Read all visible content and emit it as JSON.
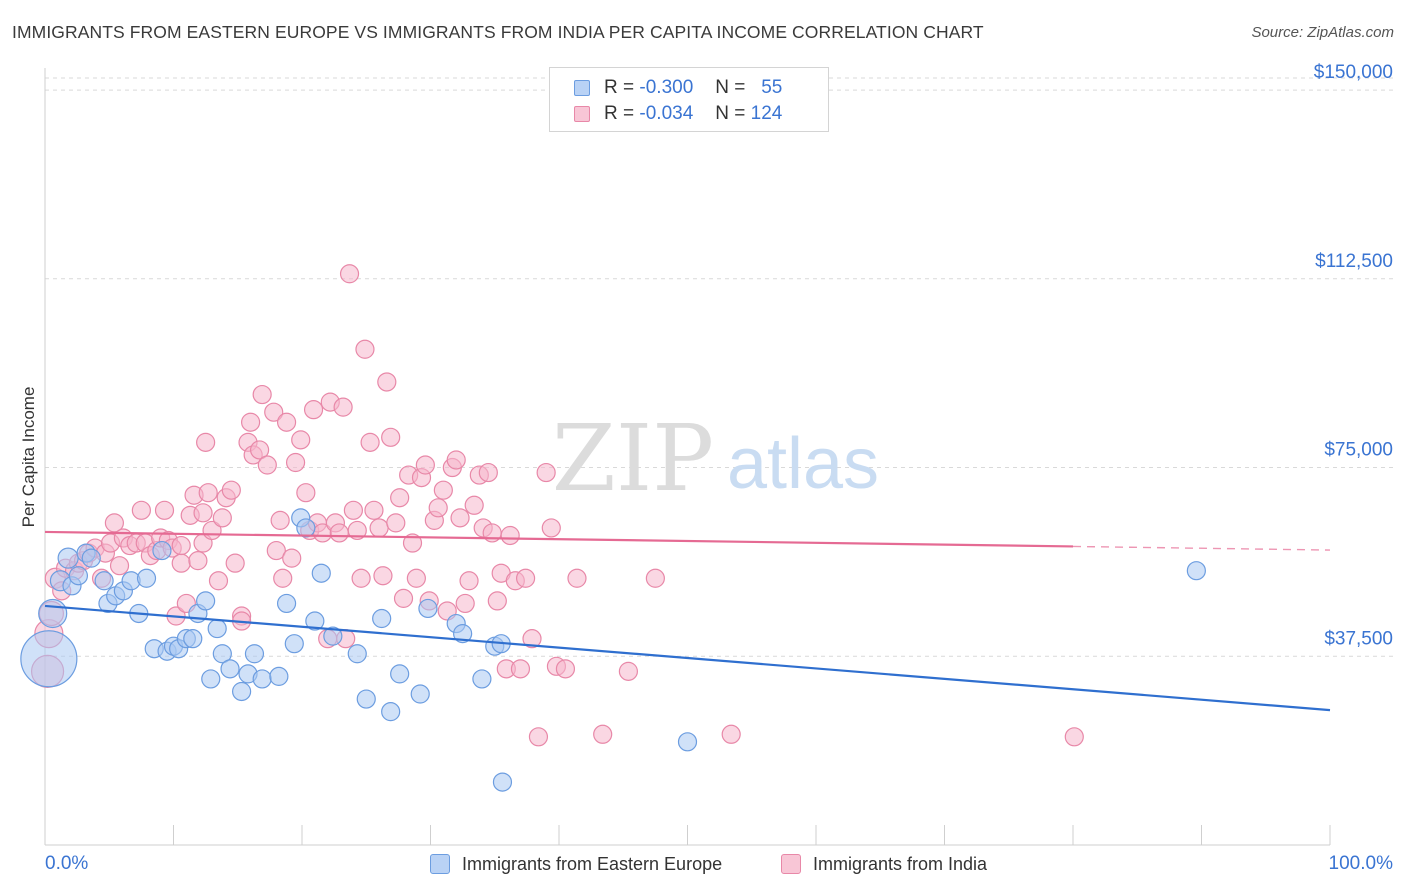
{
  "title": "IMMIGRANTS FROM EASTERN EUROPE VS IMMIGRANTS FROM INDIA PER CAPITA INCOME CORRELATION CHART",
  "source": "Source: ZipAtlas.com",
  "watermark": {
    "zip": "ZIP",
    "atlas": "atlas"
  },
  "legend_top": [
    {
      "r_label": "R =",
      "r_value": "-0.300",
      "n_label": "N =",
      "n_value": "55"
    },
    {
      "r_label": "R =",
      "r_value": "-0.034",
      "n_label": "N =",
      "n_value": "124"
    }
  ],
  "bottom_legend": [
    {
      "label": "Immigrants from Eastern Europe"
    },
    {
      "label": "Immigrants from India"
    }
  ],
  "colors": {
    "blue_fill": "#a9c8f2",
    "blue_stroke": "#6c9de0",
    "blue_line": "#2f6fcf",
    "pink_fill": "#f6b7cc",
    "pink_stroke": "#e888a8",
    "pink_line": "#e56a93",
    "axis_text": "#3a74d2",
    "grid": "#d9d9d9"
  },
  "chart_data": {
    "type": "scatter",
    "title": "IMMIGRANTS FROM EASTERN EUROPE VS IMMIGRANTS FROM INDIA PER CAPITA INCOME CORRELATION CHART",
    "xlabel": "",
    "ylabel": "Per Capita Income",
    "xlim": [
      0,
      100
    ],
    "ylim": [
      0,
      152000
    ],
    "x_tick_labels": [
      "0.0%",
      "100.0%"
    ],
    "y_ticks": [
      37500,
      75000,
      112500,
      150000
    ],
    "y_tick_labels": [
      "$37,500",
      "$75,000",
      "$112,500",
      "$150,000"
    ],
    "grid": true,
    "legend_position": "top-center",
    "series": [
      {
        "name": "Immigrants from Eastern Europe",
        "color": "blue",
        "r": -0.3,
        "n": 55,
        "trend": {
          "x": [
            0,
            100
          ],
          "y": [
            47500,
            26800
          ],
          "dashed_from": null
        },
        "points": [
          [
            0.3,
            37000,
            28
          ],
          [
            0.6,
            46000,
            14
          ],
          [
            1.2,
            52500,
            10
          ],
          [
            1.8,
            57000,
            10
          ],
          [
            2.1,
            51500,
            9
          ],
          [
            2.6,
            53500,
            9
          ],
          [
            3.2,
            58000,
            9
          ],
          [
            3.6,
            57000,
            9
          ],
          [
            4.6,
            52500,
            9
          ],
          [
            4.9,
            48000,
            9
          ],
          [
            5.5,
            49500,
            9
          ],
          [
            6.1,
            50500,
            9
          ],
          [
            6.7,
            52500,
            9
          ],
          [
            7.3,
            46000,
            9
          ],
          [
            7.9,
            53000,
            9
          ],
          [
            8.5,
            39000,
            9
          ],
          [
            9.1,
            58500,
            9
          ],
          [
            9.5,
            38500,
            9
          ],
          [
            10.0,
            39500,
            9
          ],
          [
            10.4,
            39000,
            9
          ],
          [
            11.0,
            41000,
            9
          ],
          [
            11.5,
            41000,
            9
          ],
          [
            11.9,
            46000,
            9
          ],
          [
            12.5,
            48500,
            9
          ],
          [
            12.9,
            33000,
            9
          ],
          [
            13.4,
            43000,
            9
          ],
          [
            13.8,
            38000,
            9
          ],
          [
            14.4,
            35000,
            9
          ],
          [
            15.3,
            30500,
            9
          ],
          [
            15.8,
            34000,
            9
          ],
          [
            16.3,
            38000,
            9
          ],
          [
            16.9,
            33000,
            9
          ],
          [
            18.2,
            33500,
            9
          ],
          [
            18.8,
            48000,
            9
          ],
          [
            19.4,
            40000,
            9
          ],
          [
            19.9,
            65000,
            9
          ],
          [
            20.3,
            63000,
            9
          ],
          [
            21.0,
            44500,
            9
          ],
          [
            21.5,
            54000,
            9
          ],
          [
            22.4,
            41500,
            9
          ],
          [
            24.3,
            38000,
            9
          ],
          [
            25.0,
            29000,
            9
          ],
          [
            26.2,
            45000,
            9
          ],
          [
            26.9,
            26500,
            9
          ],
          [
            27.6,
            34000,
            9
          ],
          [
            29.2,
            30000,
            9
          ],
          [
            29.8,
            47000,
            9
          ],
          [
            32.0,
            44000,
            9
          ],
          [
            32.5,
            42000,
            9
          ],
          [
            34.0,
            33000,
            9
          ],
          [
            35.0,
            39500,
            9
          ],
          [
            35.5,
            40000,
            9
          ],
          [
            35.6,
            12500,
            9
          ],
          [
            50.0,
            20500,
            9
          ],
          [
            89.6,
            54500,
            9
          ]
        ]
      },
      {
        "name": "Immigrants from India",
        "color": "pink",
        "r": -0.034,
        "n": 124,
        "trend": {
          "x": [
            0,
            100
          ],
          "y": [
            62200,
            58600
          ],
          "dashed_from": 80
        },
        "points": [
          [
            0.2,
            34500,
            16
          ],
          [
            0.3,
            42000,
            14
          ],
          [
            0.5,
            46000,
            12
          ],
          [
            0.8,
            53000,
            10
          ],
          [
            1.3,
            50500,
            9
          ],
          [
            1.6,
            55000,
            9
          ],
          [
            2.3,
            54500,
            9
          ],
          [
            2.6,
            56000,
            9
          ],
          [
            3.0,
            56500,
            9
          ],
          [
            3.4,
            58000,
            9
          ],
          [
            3.9,
            59000,
            9
          ],
          [
            4.4,
            53000,
            9
          ],
          [
            4.7,
            58000,
            9
          ],
          [
            5.1,
            60000,
            9
          ],
          [
            5.4,
            64000,
            9
          ],
          [
            5.8,
            55500,
            9
          ],
          [
            6.1,
            61000,
            9
          ],
          [
            6.6,
            59500,
            9
          ],
          [
            7.1,
            60000,
            9
          ],
          [
            7.5,
            66500,
            9
          ],
          [
            7.8,
            60000,
            9
          ],
          [
            8.2,
            57500,
            9
          ],
          [
            8.7,
            58500,
            9
          ],
          [
            9.0,
            61000,
            9
          ],
          [
            9.3,
            66500,
            9
          ],
          [
            9.6,
            60500,
            9
          ],
          [
            9.9,
            59000,
            9
          ],
          [
            10.2,
            45500,
            9
          ],
          [
            10.6,
            56000,
            9
          ],
          [
            10.6,
            59500,
            9
          ],
          [
            11.0,
            48000,
            9
          ],
          [
            11.3,
            65500,
            9
          ],
          [
            11.6,
            69500,
            9
          ],
          [
            11.9,
            56500,
            9
          ],
          [
            12.3,
            66000,
            9
          ],
          [
            12.3,
            60000,
            9
          ],
          [
            12.5,
            80000,
            9
          ],
          [
            12.7,
            70000,
            9
          ],
          [
            13.0,
            62500,
            9
          ],
          [
            13.5,
            52500,
            9
          ],
          [
            13.8,
            65000,
            9
          ],
          [
            14.1,
            69000,
            9
          ],
          [
            14.5,
            70500,
            9
          ],
          [
            14.8,
            56000,
            9
          ],
          [
            15.3,
            45500,
            9
          ],
          [
            15.3,
            44500,
            9
          ],
          [
            15.8,
            80000,
            9
          ],
          [
            16.0,
            84000,
            9
          ],
          [
            16.2,
            77500,
            9
          ],
          [
            16.7,
            78500,
            9
          ],
          [
            16.9,
            89500,
            9
          ],
          [
            17.3,
            75500,
            9
          ],
          [
            17.8,
            86000,
            9
          ],
          [
            18.0,
            58500,
            9
          ],
          [
            18.3,
            64500,
            9
          ],
          [
            18.5,
            53000,
            9
          ],
          [
            18.8,
            84000,
            9
          ],
          [
            19.2,
            57000,
            9
          ],
          [
            19.5,
            76000,
            9
          ],
          [
            19.9,
            80500,
            9
          ],
          [
            20.3,
            70000,
            9
          ],
          [
            20.6,
            62500,
            9
          ],
          [
            20.9,
            86500,
            9
          ],
          [
            21.2,
            64000,
            9
          ],
          [
            21.6,
            62000,
            9
          ],
          [
            22.0,
            41000,
            9
          ],
          [
            22.2,
            88000,
            9
          ],
          [
            22.6,
            64000,
            9
          ],
          [
            22.9,
            62000,
            9
          ],
          [
            23.2,
            87000,
            9
          ],
          [
            23.4,
            41000,
            9
          ],
          [
            23.7,
            113500,
            9
          ],
          [
            24.0,
            66500,
            9
          ],
          [
            24.3,
            62500,
            9
          ],
          [
            24.6,
            53000,
            9
          ],
          [
            24.9,
            98500,
            9
          ],
          [
            25.3,
            80000,
            9
          ],
          [
            25.6,
            66500,
            9
          ],
          [
            26.0,
            63000,
            9
          ],
          [
            26.3,
            53500,
            9
          ],
          [
            26.6,
            92000,
            9
          ],
          [
            26.9,
            81000,
            9
          ],
          [
            27.3,
            64000,
            9
          ],
          [
            27.6,
            69000,
            9
          ],
          [
            27.9,
            49000,
            9
          ],
          [
            28.3,
            73500,
            9
          ],
          [
            28.6,
            60000,
            9
          ],
          [
            28.9,
            53000,
            9
          ],
          [
            29.3,
            73000,
            9
          ],
          [
            29.6,
            75500,
            9
          ],
          [
            29.9,
            48500,
            9
          ],
          [
            30.3,
            64500,
            9
          ],
          [
            30.6,
            67000,
            9
          ],
          [
            31.0,
            70500,
            9
          ],
          [
            31.3,
            46500,
            9
          ],
          [
            31.7,
            75000,
            9
          ],
          [
            32.0,
            76500,
            9
          ],
          [
            32.3,
            65000,
            9
          ],
          [
            32.7,
            48000,
            9
          ],
          [
            33.0,
            52500,
            9
          ],
          [
            33.4,
            67500,
            9
          ],
          [
            33.8,
            73500,
            9
          ],
          [
            34.1,
            63000,
            9
          ],
          [
            34.5,
            74000,
            9
          ],
          [
            34.8,
            62000,
            9
          ],
          [
            35.2,
            48500,
            9
          ],
          [
            35.5,
            54000,
            9
          ],
          [
            35.9,
            35000,
            9
          ],
          [
            36.2,
            61500,
            9
          ],
          [
            36.6,
            52500,
            9
          ],
          [
            37.0,
            35000,
            9
          ],
          [
            37.4,
            53000,
            9
          ],
          [
            37.9,
            41000,
            9
          ],
          [
            38.4,
            21500,
            9
          ],
          [
            39.0,
            74000,
            9
          ],
          [
            39.4,
            63000,
            9
          ],
          [
            39.8,
            35500,
            9
          ],
          [
            40.5,
            35000,
            9
          ],
          [
            41.4,
            53000,
            9
          ],
          [
            43.4,
            22000,
            9
          ],
          [
            45.4,
            34500,
            9
          ],
          [
            47.5,
            53000,
            9
          ],
          [
            53.4,
            22000,
            9
          ],
          [
            80.1,
            21500,
            9
          ]
        ]
      }
    ]
  }
}
